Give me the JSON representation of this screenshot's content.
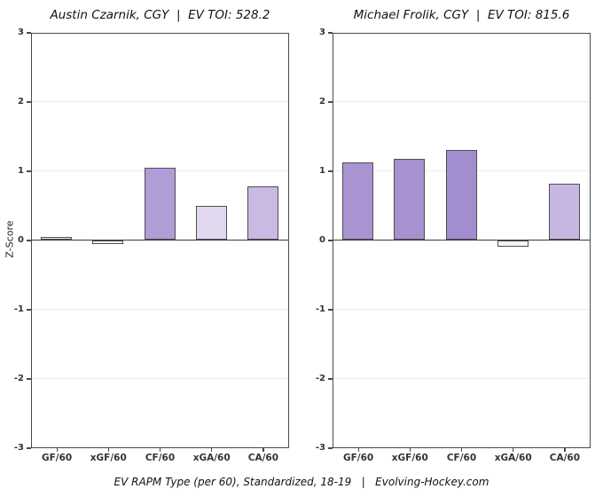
{
  "figure": {
    "ylabel": "Z-Score",
    "caption": "EV RAPM Type (per 60), Standardized, 18-19   |   Evolving-Hockey.com"
  },
  "styles": {
    "bar_border": "#4f4f4f",
    "axis_border": "#4a4a4a",
    "zero_line": "#3a3a3a",
    "gridline": "#eaeaea",
    "tick_text": "#333333"
  },
  "chart_data": [
    {
      "type": "bar",
      "title": "Austin Czarnik, CGY  |  EV TOI: 528.2",
      "player": "Austin Czarnik",
      "team": "CGY",
      "ev_toi": "528.2",
      "categories": [
        "GF/60",
        "xGF/60",
        "CF/60",
        "xGA/60",
        "CA/60"
      ],
      "values": [
        0.04,
        -0.06,
        1.05,
        0.49,
        0.78
      ],
      "bar_colors": [
        "#f4f1f4",
        "#f9f3f2",
        "#b09cd6",
        "#e2d9f0",
        "#c9b9e3"
      ],
      "ylabel": "Z-Score",
      "ylim": [
        -3,
        3
      ],
      "yticks": [
        "3",
        "2",
        "1",
        "0",
        "-1",
        "-2",
        "-3"
      ],
      "grid": "major-horizontal",
      "legend": "none"
    },
    {
      "type": "bar",
      "title": "Michael Frolik, CGY  |  EV TOI: 815.6",
      "player": "Michael Frolik",
      "team": "CGY",
      "ev_toi": "815.6",
      "categories": [
        "GF/60",
        "xGF/60",
        "CF/60",
        "xGA/60",
        "CA/60"
      ],
      "values": [
        1.12,
        1.17,
        1.3,
        -0.1,
        0.82
      ],
      "bar_colors": [
        "#a994d1",
        "#a791d0",
        "#a28dcf",
        "#faf2f1",
        "#c7b6e2"
      ],
      "ylabel": "",
      "ylim": [
        -3,
        3
      ],
      "yticks": [
        "3",
        "2",
        "1",
        "0",
        "-1",
        "-2",
        "-3"
      ],
      "grid": "major-horizontal",
      "legend": "none"
    }
  ]
}
